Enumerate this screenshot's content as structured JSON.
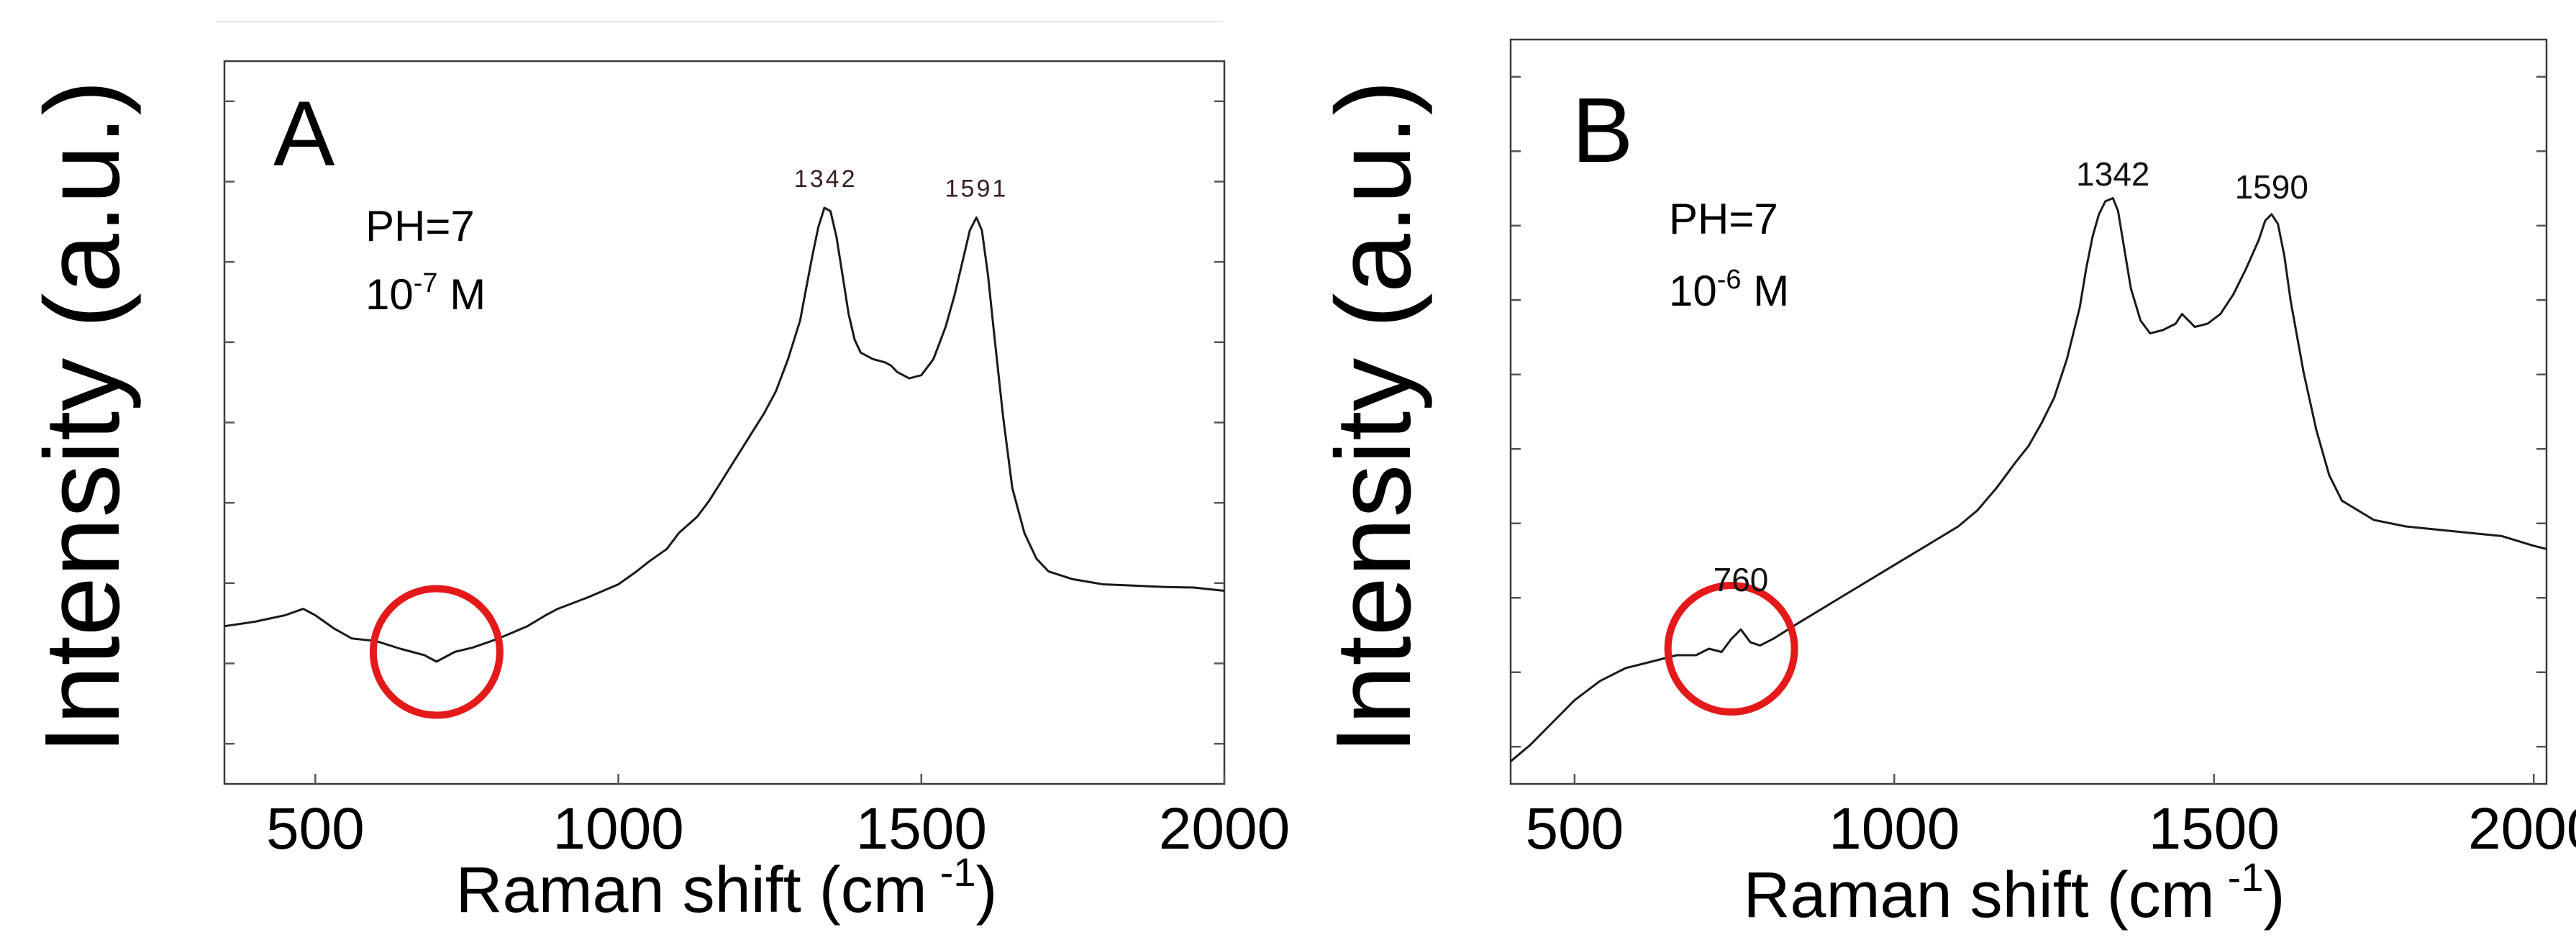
{
  "chart_data": [
    {
      "type": "line",
      "panel": "A",
      "ylabel": "Intensity (a.u.)",
      "xlabel_main": "Raman shift (cm",
      "xlabel_sup": "-1",
      "xlabel_end": ")",
      "xlim": [
        350,
        2000
      ],
      "ylim": [
        0,
        1
      ],
      "xticks": [
        500,
        1000,
        1500,
        2000
      ],
      "xtick_labels": [
        "500",
        "1000",
        "1500",
        "2000"
      ],
      "yticks_count": 9,
      "conditions": {
        "ph": "PH=7",
        "conc_base": "10",
        "conc_exp": "-7",
        "conc_unit": " M"
      },
      "peak_labels": [
        {
          "text": "1342",
          "x": 1342,
          "y": 0.905
        },
        {
          "text": "1591",
          "x": 1591,
          "y": 0.89
        }
      ],
      "highlight": {
        "x": 700,
        "y": 0.205,
        "label": ""
      },
      "series": [
        {
          "name": "pH 7, 1e-7 M",
          "x": [
            350,
            400,
            450,
            480,
            500,
            530,
            560,
            600,
            640,
            680,
            700,
            730,
            760,
            800,
            850,
            880,
            900,
            950,
            1000,
            1030,
            1050,
            1080,
            1100,
            1130,
            1150,
            1170,
            1190,
            1200,
            1220,
            1240,
            1260,
            1280,
            1300,
            1310,
            1320,
            1330,
            1340,
            1350,
            1360,
            1370,
            1380,
            1390,
            1400,
            1420,
            1440,
            1450,
            1460,
            1480,
            1500,
            1520,
            1540,
            1555,
            1570,
            1580,
            1591,
            1600,
            1610,
            1620,
            1635,
            1650,
            1670,
            1690,
            1710,
            1750,
            1800,
            1850,
            1900,
            1950,
            2000
          ],
          "y": [
            0.245,
            0.252,
            0.262,
            0.272,
            0.262,
            0.242,
            0.226,
            0.222,
            0.21,
            0.2,
            0.19,
            0.205,
            0.212,
            0.225,
            0.245,
            0.262,
            0.272,
            0.29,
            0.31,
            0.33,
            0.345,
            0.365,
            0.39,
            0.415,
            0.44,
            0.47,
            0.5,
            0.515,
            0.545,
            0.575,
            0.61,
            0.66,
            0.72,
            0.77,
            0.82,
            0.865,
            0.895,
            0.89,
            0.85,
            0.79,
            0.73,
            0.69,
            0.67,
            0.66,
            0.655,
            0.65,
            0.64,
            0.63,
            0.635,
            0.66,
            0.71,
            0.76,
            0.82,
            0.86,
            0.88,
            0.86,
            0.79,
            0.7,
            0.57,
            0.46,
            0.39,
            0.35,
            0.33,
            0.318,
            0.31,
            0.308,
            0.306,
            0.305,
            0.3
          ]
        }
      ]
    },
    {
      "type": "line",
      "panel": "B",
      "ylabel": "Intensity (a.u.)",
      "xlabel_main": "Raman shift (cm",
      "xlabel_sup": "-1",
      "xlabel_end": ")",
      "xlim": [
        400,
        2020
      ],
      "ylim": [
        0,
        1
      ],
      "xticks": [
        500,
        1000,
        1500,
        2000
      ],
      "xtick_labels": [
        "500",
        "1000",
        "1500",
        "2000"
      ],
      "yticks_count": 10,
      "conditions": {
        "ph": "PH=7",
        "conc_base": "10",
        "conc_exp": "-6",
        "conc_unit": " M"
      },
      "peak_labels": [
        {
          "text": "1342",
          "x": 1342,
          "y": 0.905
        },
        {
          "text": "1590",
          "x": 1590,
          "y": 0.885
        },
        {
          "text": "760",
          "x": 760,
          "y": 0.275
        }
      ],
      "highlight": {
        "x": 745,
        "y": 0.21,
        "label": "760"
      },
      "series": [
        {
          "name": "pH 7, 1e-6 M",
          "x": [
            400,
            430,
            460,
            500,
            540,
            580,
            620,
            660,
            690,
            710,
            730,
            745,
            760,
            775,
            790,
            810,
            850,
            900,
            950,
            1000,
            1050,
            1100,
            1130,
            1160,
            1190,
            1210,
            1230,
            1250,
            1270,
            1290,
            1300,
            1310,
            1320,
            1330,
            1342,
            1350,
            1360,
            1370,
            1385,
            1400,
            1420,
            1440,
            1450,
            1460,
            1470,
            1490,
            1510,
            1530,
            1550,
            1570,
            1580,
            1590,
            1600,
            1610,
            1620,
            1640,
            1660,
            1680,
            1700,
            1750,
            1800,
            1850,
            1900,
            1950,
            2000,
            2020
          ],
          "y": [
            0.035,
            0.06,
            0.09,
            0.13,
            0.16,
            0.18,
            0.19,
            0.2,
            0.2,
            0.21,
            0.205,
            0.225,
            0.24,
            0.22,
            0.215,
            0.225,
            0.25,
            0.28,
            0.31,
            0.34,
            0.37,
            0.4,
            0.425,
            0.46,
            0.5,
            0.525,
            0.56,
            0.6,
            0.66,
            0.74,
            0.8,
            0.85,
            0.885,
            0.905,
            0.91,
            0.89,
            0.83,
            0.77,
            0.72,
            0.7,
            0.705,
            0.715,
            0.73,
            0.72,
            0.71,
            0.715,
            0.73,
            0.76,
            0.8,
            0.845,
            0.875,
            0.885,
            0.87,
            0.82,
            0.75,
            0.64,
            0.55,
            0.48,
            0.44,
            0.41,
            0.4,
            0.395,
            0.39,
            0.385,
            0.37,
            0.365
          ]
        }
      ]
    }
  ]
}
